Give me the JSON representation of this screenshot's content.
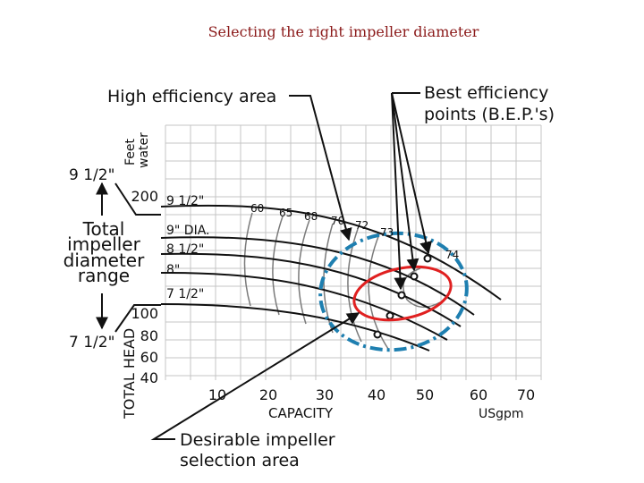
{
  "slide": {
    "title": "Selecting the right impeller diameter"
  },
  "callouts": {
    "high_efficiency": "High efficiency area",
    "bep_line1": "Best efficiency",
    "bep_line2": "points (B.E.P.'s)",
    "desirable_line1": "Desirable impeller",
    "desirable_line2": "selection area"
  },
  "range": {
    "max": "9 1/2\"",
    "min": "7 1/2\"",
    "label_lines": [
      "Total",
      "impeller",
      "diameter",
      "range"
    ]
  },
  "y_axis": {
    "title": "TOTAL HEAD",
    "unit_line1": "Feet",
    "unit_line2": "water",
    "ticks": [
      "200",
      "100",
      "80",
      "60",
      "40"
    ]
  },
  "x_axis": {
    "title": "CAPACITY",
    "unit": "USgpm",
    "ticks": [
      "10",
      "20",
      "30",
      "40",
      "50",
      "60",
      "70"
    ]
  },
  "curves": [
    {
      "label": "9 1/2\""
    },
    {
      "label": "9\" DIA."
    },
    {
      "label": "8 1/2\""
    },
    {
      "label": "8\""
    },
    {
      "label": "7 1/2\""
    }
  ],
  "efficiency_labels": [
    "60",
    "65",
    "68",
    "70",
    "72",
    "73",
    "74"
  ],
  "colors": {
    "high_eff_ellipse": "#1e7fb0",
    "selection_ellipse": "#e02020",
    "title": "#8b1a1a"
  }
}
